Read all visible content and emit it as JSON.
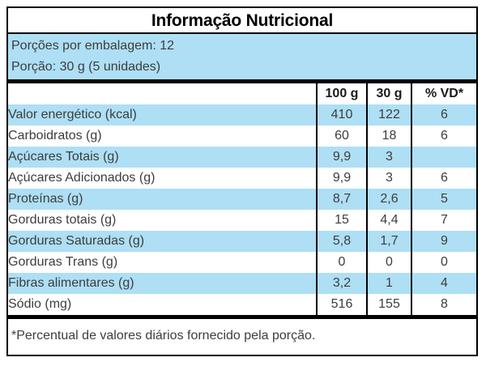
{
  "title": "Informação Nutricional",
  "serving_info": {
    "servings_per_package": "Porções por embalagem: 12",
    "serving_size": "Porção: 30 g (5 unidades)"
  },
  "table": {
    "columns": [
      "",
      "100 g",
      "30 g",
      "% VD*"
    ],
    "rows": [
      {
        "label": "Valor energético (kcal)",
        "v100": "410",
        "v30": "122",
        "vd": "6",
        "indent": 0,
        "shaded": true
      },
      {
        "label": "Carboidratos (g)",
        "v100": "60",
        "v30": "18",
        "vd": "6",
        "indent": 0,
        "shaded": false
      },
      {
        "label": "Açúcares Totais (g)",
        "v100": "9,9",
        "v30": "3",
        "vd": "",
        "indent": 1,
        "shaded": true
      },
      {
        "label": "Açúcares Adicionados (g)",
        "v100": "9,9",
        "v30": "3",
        "vd": "6",
        "indent": 2,
        "shaded": false
      },
      {
        "label": "Proteínas (g)",
        "v100": "8,7",
        "v30": "2,6",
        "vd": "5",
        "indent": 0,
        "shaded": true
      },
      {
        "label": "Gorduras totais (g)",
        "v100": "15",
        "v30": "4,4",
        "vd": "7",
        "indent": 0,
        "shaded": false
      },
      {
        "label": "Gorduras Saturadas (g)",
        "v100": "5,8",
        "v30": "1,7",
        "vd": "9",
        "indent": 1,
        "shaded": true
      },
      {
        "label": "Gorduras Trans (g)",
        "v100": "0",
        "v30": "0",
        "vd": "0",
        "indent": 1,
        "shaded": false
      },
      {
        "label": "Fibras alimentares (g)",
        "v100": "3,2",
        "v30": "1",
        "vd": "4",
        "indent": 0,
        "shaded": true
      },
      {
        "label": "Sódio (mg)",
        "v100": "516",
        "v30": "155",
        "vd": "8",
        "indent": 0,
        "shaded": false
      }
    ]
  },
  "footnote": "*Percentual de valores diários fornecido pela porção.",
  "colors": {
    "shaded_row": "#aedff5",
    "border": "#000000",
    "text": "#3d3d3d"
  }
}
